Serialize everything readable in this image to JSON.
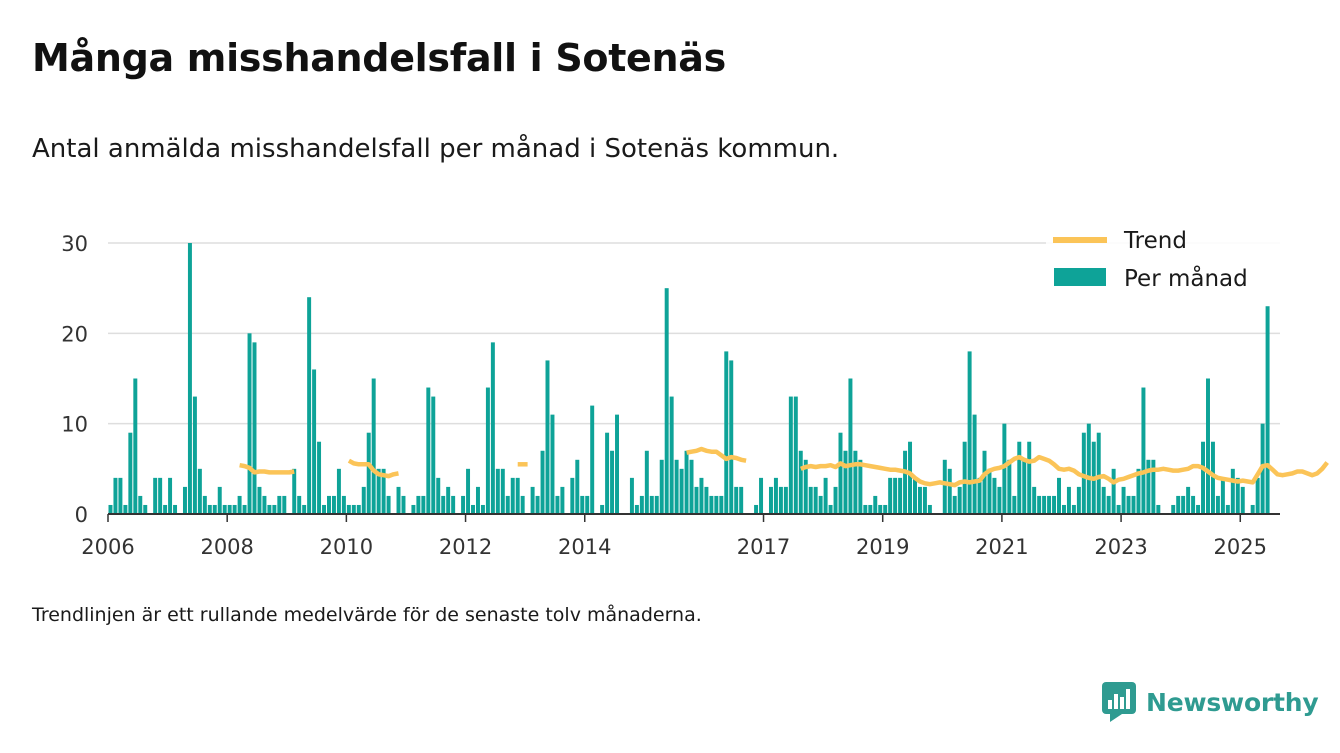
{
  "header": {
    "title": "Många misshandelsfall i Sotenäs",
    "subtitle": "Antal anmälda misshandelsfall per månad i Sotenäs kommun."
  },
  "footer": {
    "note": "Trendlinjen är ett rullande medelvärde för de senaste tolv månaderna.",
    "brand": "Newsworthy"
  },
  "colors": {
    "bars": "#0ea398",
    "trend": "#fbc458",
    "grid": "#dedede",
    "axis": "#333333",
    "brand": "#2f9b91"
  },
  "chart_data": {
    "type": "bar",
    "title": "Många misshandelsfall i Sotenäs",
    "subtitle": "Antal anmälda misshandelsfall per månad i Sotenäs kommun.",
    "x_range": [
      "2006-01",
      "2025-08"
    ],
    "ylim": [
      0,
      30
    ],
    "yticks": [
      0,
      10,
      20,
      30
    ],
    "xticks": [
      {
        "label": "2006",
        "month": "2006-01"
      },
      {
        "label": "2008",
        "month": "2008-01"
      },
      {
        "label": "2010",
        "month": "2010-01"
      },
      {
        "label": "2012",
        "month": "2012-01"
      },
      {
        "label": "2014",
        "month": "2014-01"
      },
      {
        "label": "2017",
        "month": "2017-01"
      },
      {
        "label": "2019",
        "month": "2019-01"
      },
      {
        "label": "2021",
        "month": "2021-01"
      },
      {
        "label": "2023",
        "month": "2023-01"
      },
      {
        "label": "2025",
        "month": "2025-01"
      }
    ],
    "grid": true,
    "legend": {
      "position": "top-right",
      "entries": [
        {
          "label": "Trend",
          "kind": "line"
        },
        {
          "label": "Per månad",
          "kind": "bar"
        }
      ]
    },
    "series": [
      {
        "name": "Per månad",
        "type": "bar",
        "start": "2006-01",
        "values": [
          1,
          4,
          4,
          1,
          9,
          15,
          2,
          1,
          0,
          4,
          4,
          1,
          4,
          1,
          0,
          3,
          30,
          13,
          5,
          2,
          1,
          1,
          3,
          1,
          1,
          1,
          2,
          1,
          20,
          19,
          3,
          2,
          1,
          1,
          2,
          2,
          0,
          5,
          2,
          1,
          24,
          16,
          8,
          1,
          2,
          2,
          5,
          2,
          1,
          1,
          1,
          3,
          9,
          15,
          5,
          5,
          2,
          0,
          3,
          2,
          0,
          1,
          2,
          2,
          14,
          13,
          4,
          2,
          3,
          2,
          0,
          2,
          5,
          1,
          3,
          1,
          14,
          19,
          5,
          5,
          2,
          4,
          4,
          2,
          0,
          3,
          2,
          7,
          17,
          11,
          2,
          3,
          0,
          4,
          6,
          2,
          2,
          12,
          0,
          1,
          9,
          7,
          11,
          0,
          0,
          4,
          1,
          2,
          7,
          2,
          2,
          6,
          25,
          13,
          6,
          5,
          7,
          6,
          3,
          4,
          3,
          2,
          2,
          2,
          18,
          17,
          3,
          3,
          0,
          0,
          1,
          4,
          0,
          3,
          4,
          3,
          3,
          13,
          13,
          7,
          6,
          3,
          3,
          2,
          4,
          1,
          3,
          9,
          7,
          15,
          7,
          6,
          1,
          1,
          2,
          1,
          1,
          4,
          4,
          4,
          7,
          8,
          4,
          3,
          3,
          1,
          0,
          0,
          6,
          5,
          2,
          3,
          8,
          18,
          11,
          4,
          7,
          5,
          4,
          3,
          10,
          6,
          2,
          8,
          6,
          8,
          3,
          2,
          2,
          2,
          2,
          4,
          1,
          3,
          1,
          3,
          9,
          10,
          8,
          9,
          3,
          2,
          5,
          1,
          3,
          2,
          2,
          5,
          14,
          6,
          6,
          1,
          0,
          0,
          1,
          2,
          2,
          3,
          2,
          1,
          8,
          15,
          8,
          2,
          4,
          1,
          5,
          4,
          3,
          0,
          1,
          4,
          10,
          23
        ]
      },
      {
        "name": "Trend",
        "type": "line",
        "segments": [
          {
            "start": "2008-03",
            "values": [
              5.4,
              5.3,
              5.1,
              4.6,
              4.7,
              4.7,
              4.6,
              4.6,
              4.6,
              4.6,
              4.6,
              4.7
            ]
          },
          {
            "start": "2010-01",
            "values": [
              5.9,
              5.6,
              5.5,
              5.5,
              5.5,
              4.8,
              4.4,
              4.3,
              4.2,
              4.4,
              4.5
            ]
          },
          {
            "start": "2012-11",
            "values": [
              5.5,
              5.5,
              5.5
            ]
          },
          {
            "start": "2015-09",
            "values": [
              6.8,
              6.9,
              7.0,
              7.2,
              7.0,
              6.9,
              6.9,
              6.5,
              6.1,
              6.3,
              6.2,
              6.0,
              5.9
            ]
          },
          {
            "start": "2017-08",
            "values": [
              5.0,
              5.2,
              5.3,
              5.2,
              5.3,
              5.3,
              5.4,
              5.2,
              5.6,
              5.3,
              5.4,
              5.5,
              5.5,
              5.4,
              5.3,
              5.2,
              5.1,
              5.0,
              4.9,
              4.9,
              4.8,
              4.7,
              4.5,
              4.0,
              3.6,
              3.4,
              3.3,
              3.4,
              3.5,
              3.4,
              3.3,
              3.2,
              3.5,
              3.6,
              3.5,
              3.6,
              3.7,
              4.4,
              4.8,
              5.0,
              5.1,
              5.3,
              5.7,
              6.1,
              6.3,
              6.0,
              5.8,
              5.9,
              6.3,
              6.1,
              5.9,
              5.5,
              5.0,
              4.9,
              5.0,
              4.8,
              4.4,
              4.2,
              4.0,
              3.9,
              4.1,
              4.2,
              3.9,
              3.5,
              3.8,
              3.9,
              4.1,
              4.3,
              4.5,
              4.6,
              4.8,
              4.9,
              4.9,
              5.0,
              4.9,
              4.8,
              4.8,
              4.9,
              5.0,
              5.3,
              5.3,
              5.1,
              4.7,
              4.3,
              4.0,
              3.9,
              3.8,
              3.7,
              3.6,
              3.7,
              3.6,
              3.5,
              4.4,
              5.3,
              5.4,
              4.9,
              4.4,
              4.3,
              4.4,
              4.5,
              4.7,
              4.7,
              4.5,
              4.3,
              4.5,
              5.0,
              5.7
            ]
          }
        ]
      }
    ]
  }
}
